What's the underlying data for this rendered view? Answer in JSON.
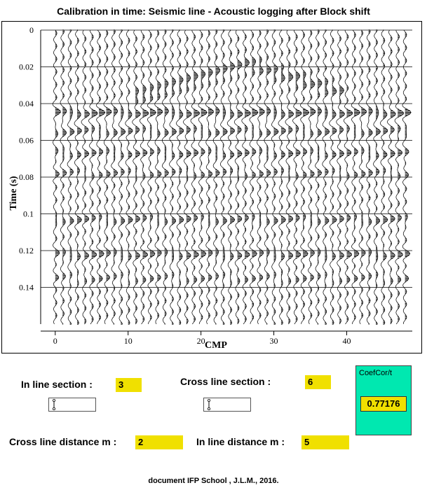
{
  "title": "Calibration in time:  Seismic line - Acoustic logging after Block shift",
  "chart_data": {
    "type": "seismic-wiggle",
    "xlabel": "CMP",
    "ylabel": "Time (s)",
    "xlim": [
      -2,
      49
    ],
    "ylim": [
      0,
      0.16
    ],
    "x_ticks": [
      0,
      10,
      20,
      30,
      40
    ],
    "y_ticks": [
      0,
      0.02,
      0.04,
      0.06,
      0.08,
      0.1,
      0.12,
      0.14
    ],
    "y_tick_labels": [
      "0",
      "0.02",
      "0.04",
      "0.06",
      "0.08",
      "0.1",
      "0.12",
      "0.14"
    ],
    "grid": true
  },
  "controls": {
    "inline_section_label": "In line section :",
    "inline_section_value": "3",
    "crossline_section_label": "Cross line section :",
    "crossline_section_value": "6",
    "crossline_distance_label": "Cross line distance m :",
    "crossline_distance_value": "2",
    "inline_distance_label": "In line distance m :",
    "inline_distance_value": "5"
  },
  "coef_panel": {
    "label": "CoefCor/t",
    "value": "0.77176"
  },
  "footer": "document IFP School , J.L.M., 2016."
}
